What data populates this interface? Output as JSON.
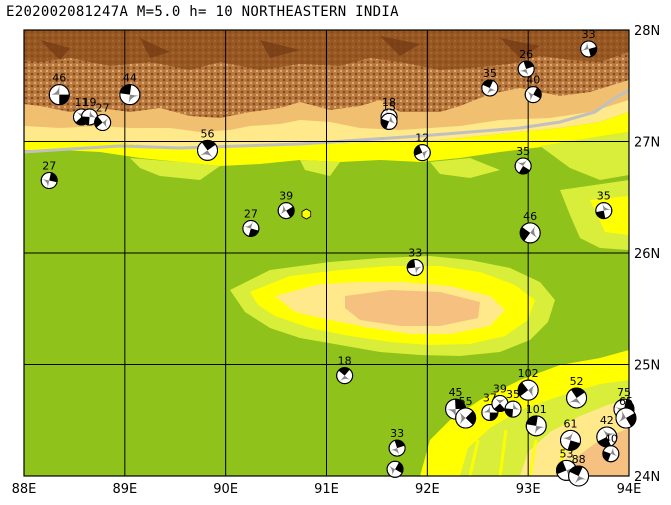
{
  "title": "E202002081247A M=5.0 h= 10 NORTHEASTERN INDIA",
  "lon_labels": [
    "88E",
    "89E",
    "90E",
    "91E",
    "92E",
    "93E",
    "94E"
  ],
  "lat_labels": [
    "28N",
    "27N",
    "26N",
    "25N",
    "24N"
  ],
  "extent": {
    "lon_min": 88,
    "lon_max": 94,
    "lat_min": 24,
    "lat_max": 28
  },
  "colors": {
    "plain": "#8fc21a",
    "foothill": "#ffff00",
    "hill": "#ffe98a",
    "upland": "#f5c080",
    "mountain": "#b8743a",
    "peak": "#8a4a18",
    "river": "#c0c0c0",
    "grid": "#000000"
  },
  "epicenter": {
    "lon": 90.8,
    "lat": 26.35,
    "symbol": "yellow-hexagon"
  },
  "mechanisms": [
    {
      "label": "46",
      "lon": 88.35,
      "lat": 27.42
    },
    {
      "label": "11",
      "lon": 88.57,
      "lat": 27.22
    },
    {
      "label": "19",
      "lon": 88.65,
      "lat": 27.22
    },
    {
      "label": "27",
      "lon": 88.78,
      "lat": 27.17
    },
    {
      "label": "44",
      "lon": 89.05,
      "lat": 27.42
    },
    {
      "label": "56",
      "lon": 89.82,
      "lat": 26.92
    },
    {
      "label": "27",
      "lon": 88.25,
      "lat": 26.65
    },
    {
      "label": "39",
      "lon": 90.6,
      "lat": 26.38
    },
    {
      "label": "27",
      "lon": 90.25,
      "lat": 26.22
    },
    {
      "label": "18",
      "lon": 91.62,
      "lat": 27.22
    },
    {
      "label": "15",
      "lon": 91.62,
      "lat": 27.18
    },
    {
      "label": "12",
      "lon": 91.95,
      "lat": 26.9
    },
    {
      "label": "35",
      "lon": 92.62,
      "lat": 27.48
    },
    {
      "label": "26",
      "lon": 92.98,
      "lat": 27.65
    },
    {
      "label": "40",
      "lon": 93.05,
      "lat": 27.42
    },
    {
      "label": "33",
      "lon": 93.6,
      "lat": 27.83
    },
    {
      "label": "35",
      "lon": 92.95,
      "lat": 26.78
    },
    {
      "label": "35",
      "lon": 93.75,
      "lat": 26.38
    },
    {
      "label": "46",
      "lon": 93.02,
      "lat": 26.18
    },
    {
      "label": "33",
      "lon": 91.88,
      "lat": 25.87
    },
    {
      "label": "18",
      "lon": 91.18,
      "lat": 24.9
    },
    {
      "label": "45",
      "lon": 92.28,
      "lat": 24.6
    },
    {
      "label": "55",
      "lon": 92.38,
      "lat": 24.52
    },
    {
      "label": "37",
      "lon": 92.62,
      "lat": 24.57
    },
    {
      "label": "39",
      "lon": 92.72,
      "lat": 24.65
    },
    {
      "label": "35",
      "lon": 92.85,
      "lat": 24.6
    },
    {
      "label": "102",
      "lon": 93.0,
      "lat": 24.77
    },
    {
      "label": "101",
      "lon": 93.08,
      "lat": 24.45
    },
    {
      "label": "52",
      "lon": 93.48,
      "lat": 24.7
    },
    {
      "label": "75",
      "lon": 93.95,
      "lat": 24.6
    },
    {
      "label": "65",
      "lon": 93.97,
      "lat": 24.52
    },
    {
      "label": "61",
      "lon": 93.42,
      "lat": 24.32
    },
    {
      "label": "42",
      "lon": 93.78,
      "lat": 24.35
    },
    {
      "label": "40",
      "lon": 93.82,
      "lat": 24.2
    },
    {
      "label": "53",
      "lon": 93.38,
      "lat": 24.05
    },
    {
      "label": "88",
      "lon": 93.5,
      "lat": 24.0
    },
    {
      "label": "33",
      "lon": 91.7,
      "lat": 24.25
    },
    {
      "label": "",
      "lon": 91.68,
      "lat": 24.06
    }
  ]
}
